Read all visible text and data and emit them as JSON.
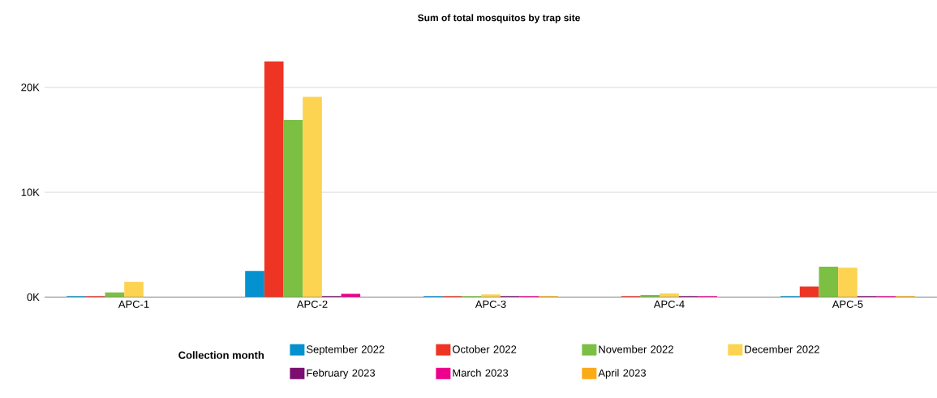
{
  "chart_data": {
    "type": "bar",
    "title": "Sum of total mosquitos by trap site",
    "legend_title": "Collection month",
    "categories": [
      "APC-1",
      "APC-2",
      "APC-3",
      "APC-4",
      "APC-5"
    ],
    "series": [
      {
        "name": "September 2022",
        "color": "#0392cf",
        "values": [
          100,
          2500,
          100,
          null,
          100
        ]
      },
      {
        "name": "October 2022",
        "color": "#ee3524",
        "values": [
          100,
          22500,
          100,
          100,
          1000
        ]
      },
      {
        "name": "November 2022",
        "color": "#7bc043",
        "values": [
          450,
          16900,
          100,
          200,
          2900
        ]
      },
      {
        "name": "December 2022",
        "color": "#fdd352",
        "values": [
          1450,
          19100,
          250,
          350,
          2800
        ]
      },
      {
        "name": "February 2023",
        "color": "#7b0e6e",
        "values": [
          null,
          100,
          100,
          100,
          100
        ]
      },
      {
        "name": "March 2023",
        "color": "#ec008c",
        "values": [
          null,
          300,
          100,
          100,
          100
        ]
      },
      {
        "name": "April 2023",
        "color": "#fbab18",
        "values": [
          null,
          null,
          100,
          null,
          100
        ]
      }
    ],
    "ylim": [
      0,
      22500
    ],
    "yticks": [
      {
        "value": 0,
        "label": "0K"
      },
      {
        "value": 10000,
        "label": "10K"
      },
      {
        "value": 20000,
        "label": "20K"
      }
    ],
    "grid": "y",
    "legend": "bottom"
  }
}
